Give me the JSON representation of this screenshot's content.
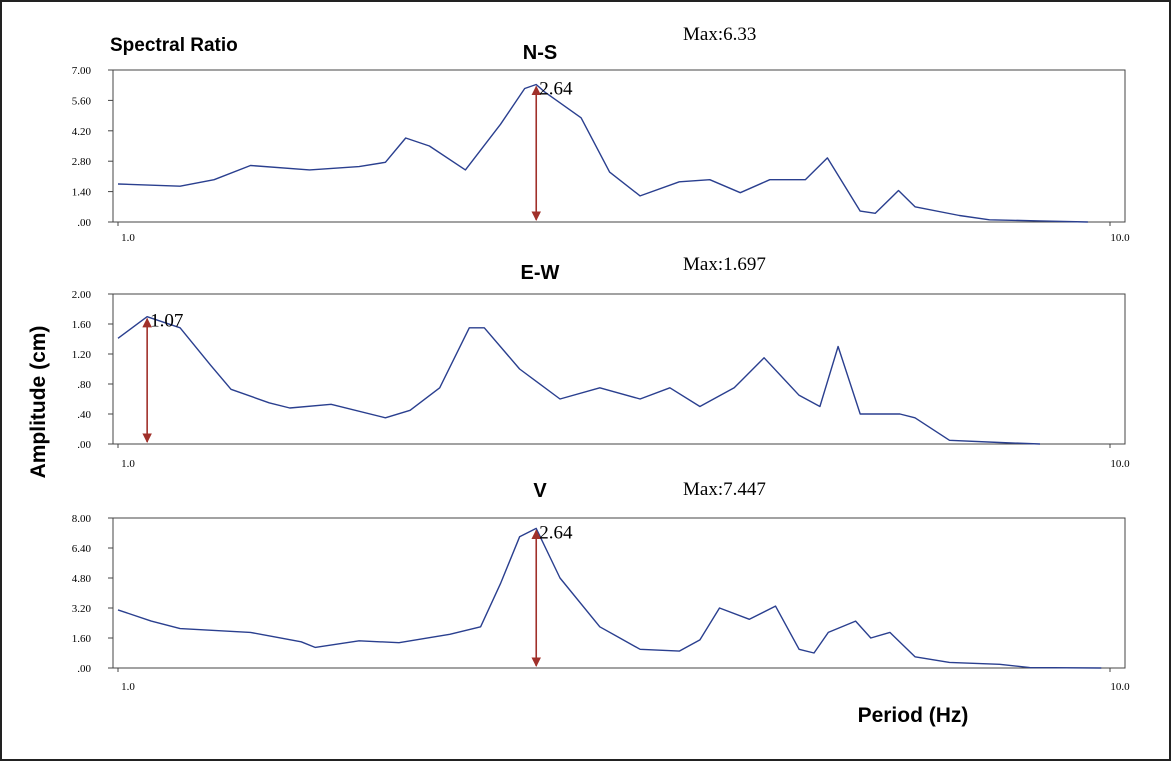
{
  "figure": {
    "title": "Spectral Ratio",
    "ylabel": "Amplitude (cm)",
    "xlabel": "Period (Hz)"
  },
  "chart_data": [
    {
      "type": "line",
      "title": "N-S",
      "annotation": "Max:6.33",
      "log_x": true,
      "color": "#2a3f8f",
      "arrow_color": "#a0302a",
      "xlim": [
        1,
        10
      ],
      "xticks": [
        {
          "value": 1,
          "label": "1.0"
        },
        {
          "value": 10,
          "label": "10.0"
        }
      ],
      "ylim": [
        0,
        7
      ],
      "yticks": [
        {
          "value": 0,
          "label": ".00"
        },
        {
          "value": 1.4,
          "label": "1.40"
        },
        {
          "value": 2.8,
          "label": "2.80"
        },
        {
          "value": 4.2,
          "label": "4.20"
        },
        {
          "value": 5.6,
          "label": "5.60"
        },
        {
          "value": 7,
          "label": "7.00"
        }
      ],
      "peak_x": 2.64,
      "x": [
        1.0,
        1.155,
        1.25,
        1.36,
        1.56,
        1.75,
        1.86,
        1.95,
        2.06,
        2.24,
        2.43,
        2.57,
        2.64,
        2.69,
        2.93,
        3.13,
        3.36,
        3.68,
        3.95,
        4.24,
        4.54,
        4.93,
        5.19,
        5.6,
        5.8,
        6.12,
        6.36,
        7.05,
        7.56,
        8.5,
        9.5
      ],
      "values": [
        1.75,
        1.65,
        1.95,
        2.6,
        2.4,
        2.55,
        2.75,
        3.87,
        3.5,
        2.4,
        4.5,
        6.15,
        6.33,
        6.0,
        4.8,
        2.3,
        1.2,
        1.85,
        1.95,
        1.35,
        1.95,
        1.95,
        2.95,
        0.5,
        0.4,
        1.45,
        0.7,
        0.3,
        0.1,
        0.05,
        0.0
      ]
    },
    {
      "type": "line",
      "title": "E-W",
      "annotation": "Max:1.697",
      "log_x": true,
      "color": "#2a3f8f",
      "arrow_color": "#a0302a",
      "xlim": [
        1,
        10
      ],
      "xticks": [
        {
          "value": 1,
          "label": "1.0"
        },
        {
          "value": 10,
          "label": "10.0"
        }
      ],
      "ylim": [
        0,
        2
      ],
      "yticks": [
        {
          "value": 0,
          "label": ".00"
        },
        {
          "value": 0.4,
          "label": ".40"
        },
        {
          "value": 0.8,
          "label": ".80"
        },
        {
          "value": 1.2,
          "label": "1.20"
        },
        {
          "value": 1.6,
          "label": "1.60"
        },
        {
          "value": 2,
          "label": "2.00"
        }
      ],
      "peak_x": 1.07,
      "x": [
        1.0,
        1.07,
        1.155,
        1.24,
        1.3,
        1.42,
        1.49,
        1.64,
        1.86,
        1.97,
        2.11,
        2.26,
        2.34,
        2.54,
        2.79,
        3.06,
        3.36,
        3.6,
        3.86,
        4.18,
        4.48,
        4.86,
        5.1,
        5.32,
        5.6,
        6.14,
        6.36,
        6.89,
        7.74,
        8.5
      ],
      "values": [
        1.41,
        1.697,
        1.55,
        1.05,
        0.73,
        0.55,
        0.48,
        0.53,
        0.35,
        0.45,
        0.75,
        1.55,
        1.55,
        1.0,
        0.6,
        0.75,
        0.6,
        0.75,
        0.5,
        0.75,
        1.15,
        0.65,
        0.5,
        1.3,
        0.4,
        0.4,
        0.35,
        0.05,
        0.02,
        0.0
      ]
    },
    {
      "type": "line",
      "title": "V",
      "annotation": "Max:7.447",
      "log_x": true,
      "color": "#2a3f8f",
      "arrow_color": "#a0302a",
      "xlim": [
        1,
        10
      ],
      "xticks": [
        {
          "value": 1,
          "label": "1.0"
        },
        {
          "value": 10,
          "label": "10.0"
        }
      ],
      "ylim": [
        0,
        8
      ],
      "yticks": [
        {
          "value": 0,
          "label": ".00"
        },
        {
          "value": 1.6,
          "label": "1.60"
        },
        {
          "value": 3.2,
          "label": "3.20"
        },
        {
          "value": 4.8,
          "label": "4.80"
        },
        {
          "value": 6.4,
          "label": "6.40"
        },
        {
          "value": 8,
          "label": "8.00"
        }
      ],
      "peak_x": 2.64,
      "x": [
        1.0,
        1.08,
        1.155,
        1.36,
        1.53,
        1.58,
        1.75,
        1.92,
        2.16,
        2.32,
        2.43,
        2.54,
        2.64,
        2.79,
        3.06,
        3.36,
        3.68,
        3.86,
        4.04,
        4.33,
        4.6,
        4.86,
        5.03,
        5.2,
        5.54,
        5.74,
        6.0,
        6.36,
        6.89,
        7.74,
        8.3,
        9.8
      ],
      "values": [
        3.1,
        2.5,
        2.1,
        1.9,
        1.4,
        1.1,
        1.45,
        1.35,
        1.8,
        2.2,
        4.5,
        7.0,
        7.447,
        4.8,
        2.2,
        1.0,
        0.9,
        1.5,
        3.2,
        2.6,
        3.3,
        1.0,
        0.8,
        1.9,
        2.5,
        1.6,
        1.9,
        0.6,
        0.3,
        0.2,
        0.02,
        0.0
      ]
    }
  ]
}
